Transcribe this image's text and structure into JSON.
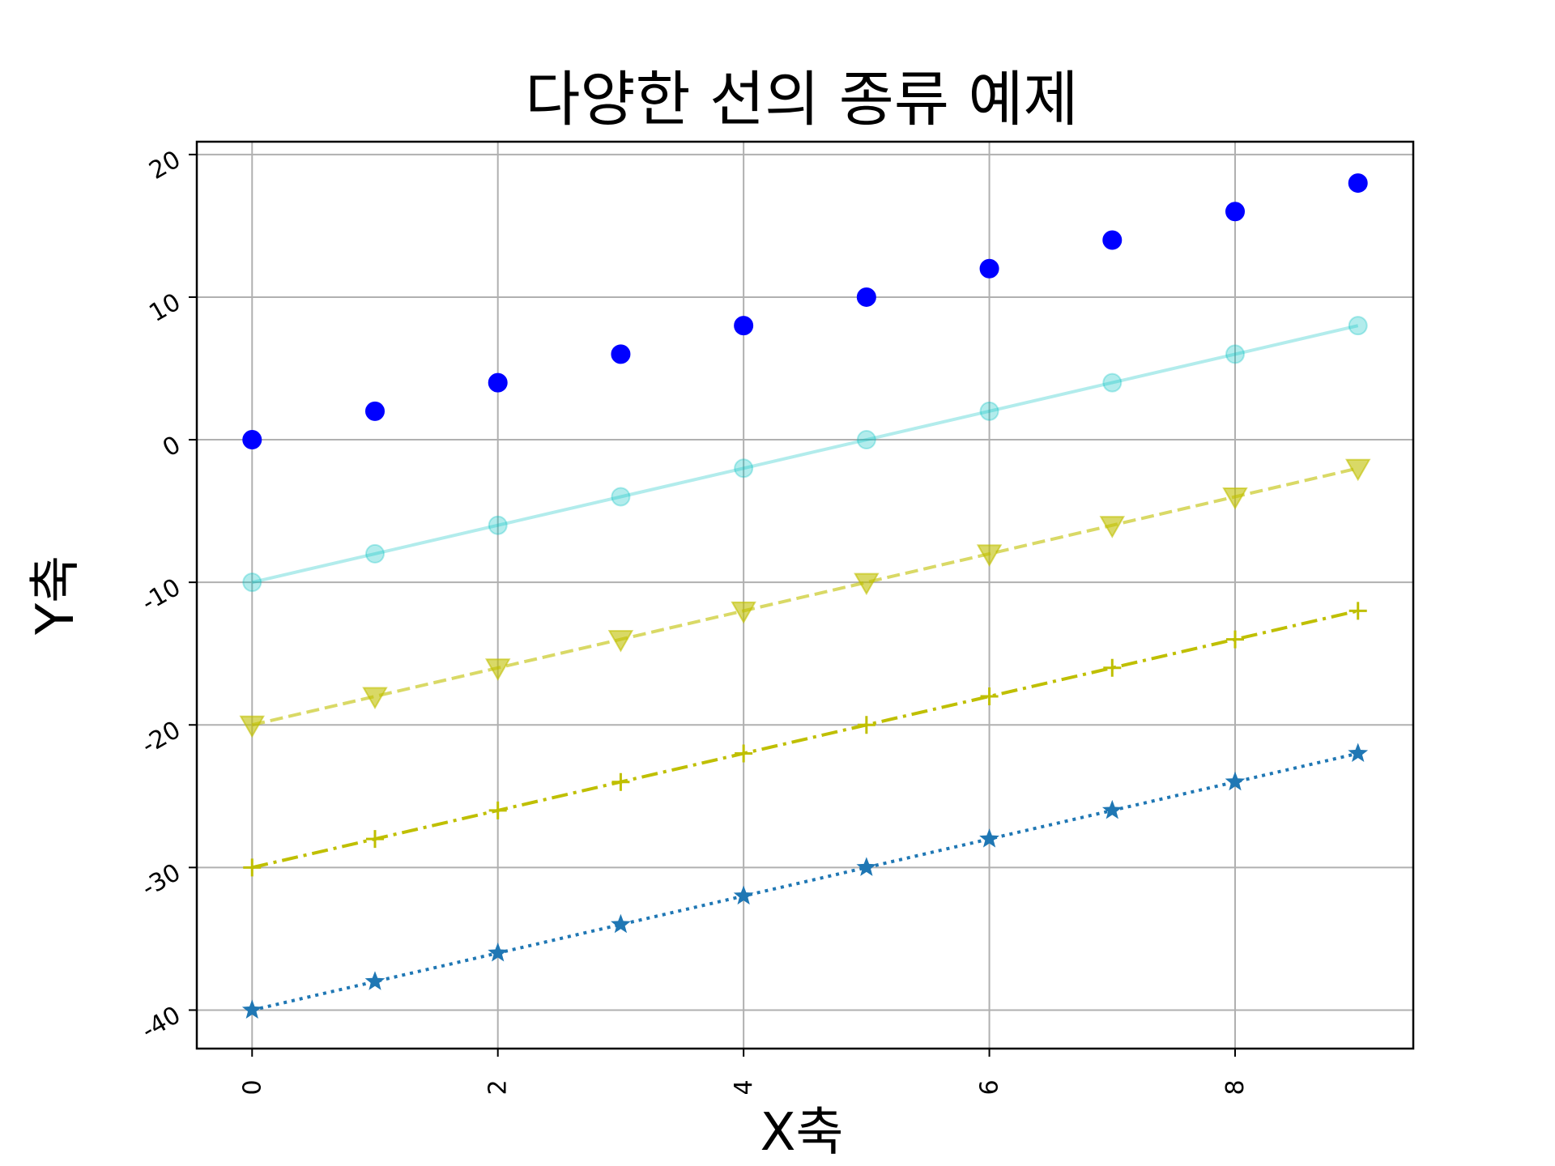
{
  "chart_data": {
    "type": "line",
    "title": "다양한 선의 종류 예제",
    "xlabel": "X축",
    "ylabel": "Y축",
    "x": [
      0,
      1,
      2,
      3,
      4,
      5,
      6,
      7,
      8,
      9
    ],
    "xlim": [
      -0.45,
      9.45
    ],
    "ylim": [
      -42.7,
      20.9
    ],
    "xticks": [
      0,
      2,
      4,
      6,
      8
    ],
    "yticks": [
      -40,
      -30,
      -20,
      -10,
      0,
      10,
      20
    ],
    "xtick_labels": [
      "0",
      "2",
      "4",
      "6",
      "8"
    ],
    "ytick_labels": [
      "-40",
      "-30",
      "-20",
      "-10",
      "0",
      "10",
      "20"
    ],
    "xtick_rotation": 90,
    "ytick_rotation": 30,
    "grid": true,
    "series": [
      {
        "values": [
          0,
          2,
          4,
          6,
          8,
          10,
          12,
          14,
          16,
          18
        ],
        "color": "#0000ff",
        "linestyle": "none",
        "marker": "circle",
        "alpha": 1.0
      },
      {
        "values": [
          -10,
          -8,
          -6,
          -4,
          -2,
          0,
          2,
          4,
          6,
          8
        ],
        "color": "#00bfbf",
        "linestyle": "solid",
        "marker": "circle",
        "alpha": 0.3
      },
      {
        "values": [
          -20,
          -18,
          -16,
          -14,
          -12,
          -10,
          -8,
          -6,
          -4,
          -2
        ],
        "color": "#bfbf00",
        "linestyle": "dashed",
        "marker": "triangle-down",
        "alpha": 0.6
      },
      {
        "values": [
          -30,
          -28,
          -26,
          -24,
          -22,
          -20,
          -18,
          -16,
          -14,
          -12
        ],
        "color": "#bfbf00",
        "linestyle": "dashdot",
        "marker": "plus",
        "alpha": 1.0
      },
      {
        "values": [
          -40,
          -38,
          -36,
          -34,
          -32,
          -30,
          -28,
          -26,
          -24,
          -22
        ],
        "color": "#1f77b4",
        "linestyle": "dotted",
        "marker": "star",
        "alpha": 1.0
      }
    ]
  }
}
